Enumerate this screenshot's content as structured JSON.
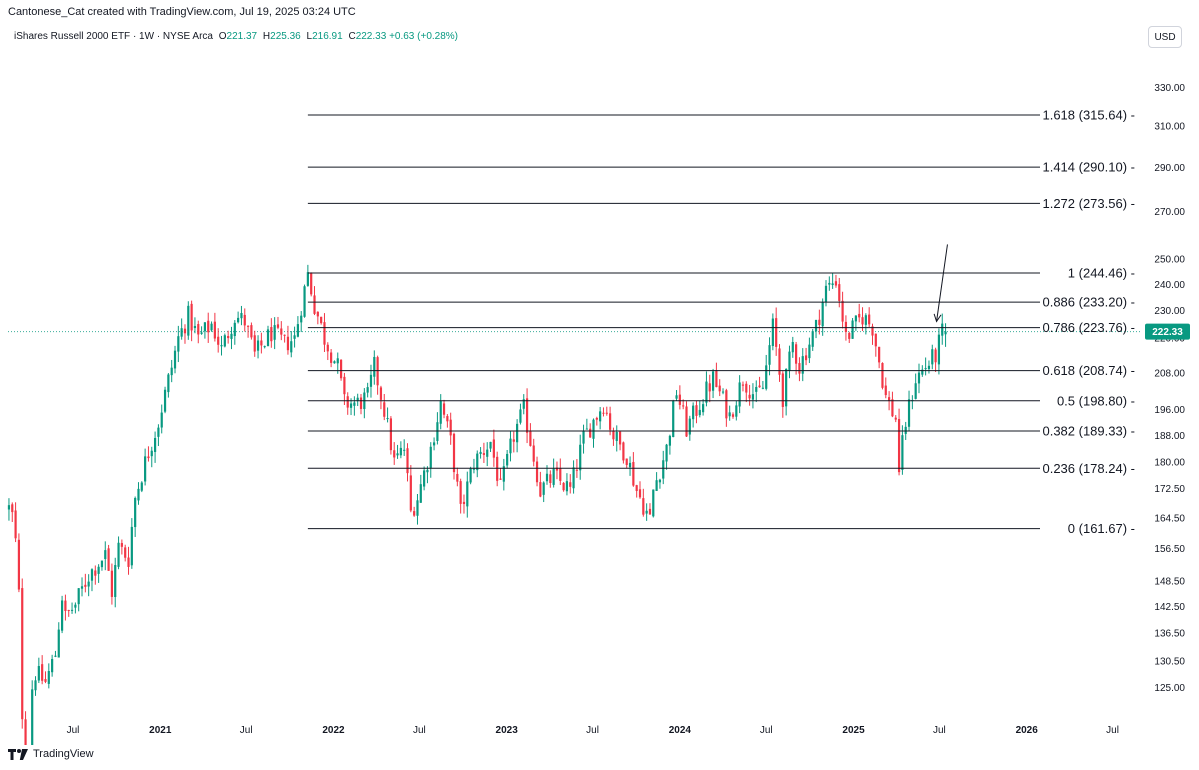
{
  "credit": "Cantonese_Cat created with TradingView.com, Jul 19, 2025 03:24 UTC",
  "legend": {
    "title": "iShares Russell 2000 ETF · 1W · NYSE Arca",
    "o_label": "O",
    "o": "221.37",
    "h_label": "H",
    "h": "225.36",
    "l_label": "L",
    "l": "216.91",
    "c_label": "C",
    "c": "222.33",
    "change": "+0.63 (+0.28%)"
  },
  "currency": "USD",
  "brand": "TradingView",
  "colors": {
    "up": "#089981",
    "down": "#f23645",
    "fib": "#131722",
    "last": "#089981"
  },
  "chart_data": {
    "type": "candlestick",
    "scale": "log",
    "ylim": [
      119,
      345
    ],
    "xlim": [
      "2020-02-15",
      "2026-09-01"
    ],
    "y_ticks": [
      "330.00",
      "310.00",
      "290.00",
      "270.00",
      "250.00",
      "240.00",
      "230.00",
      "220.00",
      "208.00",
      "196.00",
      "188.00",
      "180.00",
      "172.50",
      "164.50",
      "156.50",
      "148.50",
      "142.50",
      "136.50",
      "130.50",
      "125.00"
    ],
    "x_ticks": [
      {
        "date": "2020-07-01",
        "label": "Jul",
        "bold": false
      },
      {
        "date": "2021-01-01",
        "label": "2021",
        "bold": true
      },
      {
        "date": "2021-07-01",
        "label": "Jul",
        "bold": false
      },
      {
        "date": "2022-01-01",
        "label": "2022",
        "bold": true
      },
      {
        "date": "2022-07-01",
        "label": "Jul",
        "bold": false
      },
      {
        "date": "2023-01-01",
        "label": "2023",
        "bold": true
      },
      {
        "date": "2023-07-01",
        "label": "Jul",
        "bold": false
      },
      {
        "date": "2024-01-01",
        "label": "2024",
        "bold": true
      },
      {
        "date": "2024-07-01",
        "label": "Jul",
        "bold": false
      },
      {
        "date": "2025-01-01",
        "label": "2025",
        "bold": true
      },
      {
        "date": "2025-07-01",
        "label": "Jul",
        "bold": false
      },
      {
        "date": "2026-01-01",
        "label": "2026",
        "bold": true
      },
      {
        "date": "2026-07-01",
        "label": "Jul",
        "bold": false
      }
    ],
    "last_price": 222.33,
    "last_price_label": "222.33",
    "fib_start": "2021-11-08",
    "fib_levels": [
      {
        "ratio": "1.618",
        "price": 315.64,
        "label": "1.618 (315.64)"
      },
      {
        "ratio": "1.414",
        "price": 290.1,
        "label": "1.414 (290.10)"
      },
      {
        "ratio": "1.272",
        "price": 273.56,
        "label": "1.272 (273.56)"
      },
      {
        "ratio": "1",
        "price": 244.46,
        "label": "1 (244.46)"
      },
      {
        "ratio": "0.886",
        "price": 233.2,
        "label": "0.886 (233.20)"
      },
      {
        "ratio": "0.786",
        "price": 223.76,
        "label": "0.786 (223.76)"
      },
      {
        "ratio": "0.618",
        "price": 208.74,
        "label": "0.618 (208.74)"
      },
      {
        "ratio": "0.5",
        "price": 198.8,
        "label": "0.5 (198.80)"
      },
      {
        "ratio": "0.382",
        "price": 189.33,
        "label": "0.382 (189.33)"
      },
      {
        "ratio": "0.236",
        "price": 178.24,
        "label": "0.236 (178.24)"
      },
      {
        "ratio": "0",
        "price": 161.67,
        "label": "0 (161.67)"
      }
    ],
    "arrow": {
      "from": {
        "date": "2025-07-18",
        "price": 256
      },
      "to": {
        "date": "2025-06-25",
        "price": 226
      }
    },
    "price_path": [
      [
        "2020-02-17",
        167
      ],
      [
        "2020-02-24",
        165
      ],
      [
        "2020-03-02",
        158
      ],
      [
        "2020-03-09",
        145
      ],
      [
        "2020-03-16",
        120
      ],
      [
        "2020-03-23",
        110
      ],
      [
        "2020-03-30",
        112
      ],
      [
        "2020-04-06",
        125
      ],
      [
        "2020-04-13",
        128
      ],
      [
        "2020-05-04",
        126
      ],
      [
        "2020-05-25",
        132
      ],
      [
        "2020-06-08",
        145
      ],
      [
        "2020-06-15",
        140
      ],
      [
        "2020-07-06",
        143
      ],
      [
        "2020-08-03",
        150
      ],
      [
        "2020-09-07",
        155
      ],
      [
        "2020-09-21",
        146
      ],
      [
        "2020-10-05",
        157
      ],
      [
        "2020-10-26",
        154
      ],
      [
        "2020-11-09",
        170
      ],
      [
        "2020-11-30",
        180
      ],
      [
        "2020-12-28",
        192
      ],
      [
        "2021-01-25",
        210
      ],
      [
        "2021-02-08",
        220
      ],
      [
        "2021-03-01",
        228
      ],
      [
        "2021-03-22",
        220
      ],
      [
        "2021-04-19",
        225
      ],
      [
        "2021-05-10",
        216
      ],
      [
        "2021-06-07",
        228
      ],
      [
        "2021-06-28",
        226
      ],
      [
        "2021-07-19",
        214
      ],
      [
        "2021-08-23",
        222
      ],
      [
        "2021-09-20",
        218
      ],
      [
        "2021-10-11",
        220
      ],
      [
        "2021-11-01",
        238
      ],
      [
        "2021-11-08",
        244
      ],
      [
        "2021-11-22",
        232
      ],
      [
        "2021-12-13",
        220
      ],
      [
        "2022-01-10",
        210
      ],
      [
        "2022-01-24",
        198
      ],
      [
        "2022-02-21",
        198
      ],
      [
        "2022-03-14",
        200
      ],
      [
        "2022-03-28",
        210
      ],
      [
        "2022-04-18",
        196
      ],
      [
        "2022-05-09",
        180
      ],
      [
        "2022-05-30",
        184
      ],
      [
        "2022-06-13",
        166
      ],
      [
        "2022-06-27",
        170
      ],
      [
        "2022-07-25",
        184
      ],
      [
        "2022-08-15",
        198
      ],
      [
        "2022-09-05",
        186
      ],
      [
        "2022-09-26",
        166
      ],
      [
        "2022-10-24",
        180
      ],
      [
        "2022-11-28",
        186
      ],
      [
        "2022-12-19",
        172
      ],
      [
        "2023-01-16",
        188
      ],
      [
        "2023-02-06",
        196
      ],
      [
        "2023-03-13",
        172
      ],
      [
        "2023-04-10",
        176
      ],
      [
        "2023-05-15",
        172
      ],
      [
        "2023-06-12",
        187
      ],
      [
        "2023-07-24",
        198
      ],
      [
        "2023-08-14",
        188
      ],
      [
        "2023-09-11",
        182
      ],
      [
        "2023-10-02",
        172
      ],
      [
        "2023-10-30",
        164
      ],
      [
        "2023-11-06",
        172
      ],
      [
        "2023-12-04",
        184
      ],
      [
        "2023-12-25",
        202
      ],
      [
        "2024-01-15",
        190
      ],
      [
        "2024-02-12",
        198
      ],
      [
        "2024-03-11",
        206
      ],
      [
        "2024-04-15",
        194
      ],
      [
        "2024-05-13",
        206
      ],
      [
        "2024-06-10",
        200
      ],
      [
        "2024-06-24",
        203
      ],
      [
        "2024-07-15",
        224
      ],
      [
        "2024-08-05",
        200
      ],
      [
        "2024-08-26",
        218
      ],
      [
        "2024-09-09",
        210
      ],
      [
        "2024-10-14",
        224
      ],
      [
        "2024-11-04",
        238
      ],
      [
        "2024-11-25",
        242
      ],
      [
        "2024-12-16",
        220
      ],
      [
        "2025-01-20",
        228
      ],
      [
        "2025-02-10",
        224
      ],
      [
        "2025-02-24",
        212
      ],
      [
        "2025-03-10",
        200
      ],
      [
        "2025-03-31",
        193
      ],
      [
        "2025-04-07",
        178
      ],
      [
        "2025-04-21",
        192
      ],
      [
        "2025-05-12",
        206
      ],
      [
        "2025-06-02",
        210
      ],
      [
        "2025-06-23",
        214
      ],
      [
        "2025-07-07",
        222
      ],
      [
        "2025-07-14",
        222.33
      ]
    ]
  }
}
